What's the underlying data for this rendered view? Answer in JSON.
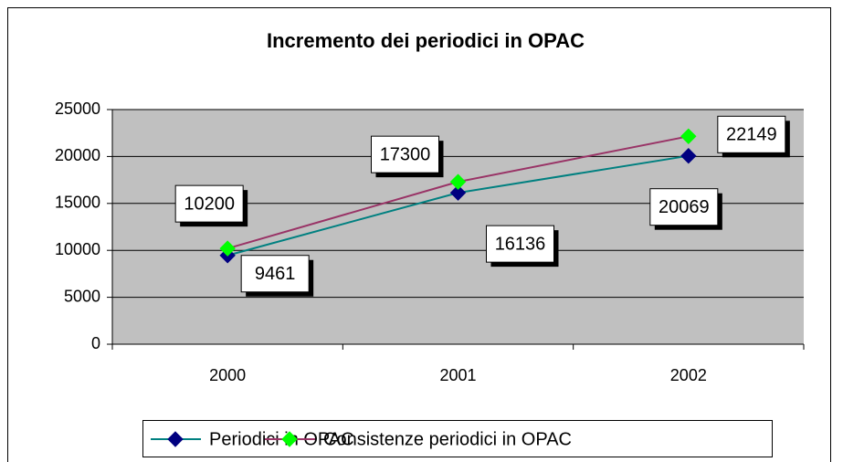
{
  "chart_data": {
    "type": "line",
    "title": "Incremento dei periodici in OPAC",
    "categories": [
      "2000",
      "2001",
      "2002"
    ],
    "series": [
      {
        "name": "Periodici in OPAC",
        "color": "#008080",
        "marker_color": "#000080",
        "values": [
          9461,
          16136,
          20069
        ]
      },
      {
        "name": "Consistenze periodici in OPAC",
        "color": "#993366",
        "marker_color": "#00ff00",
        "values": [
          10200,
          17300,
          22149
        ]
      }
    ],
    "ylim": [
      0,
      25000
    ],
    "yticks": [
      0,
      5000,
      10000,
      15000,
      20000,
      25000
    ],
    "grid": true,
    "legend": "bottom"
  }
}
